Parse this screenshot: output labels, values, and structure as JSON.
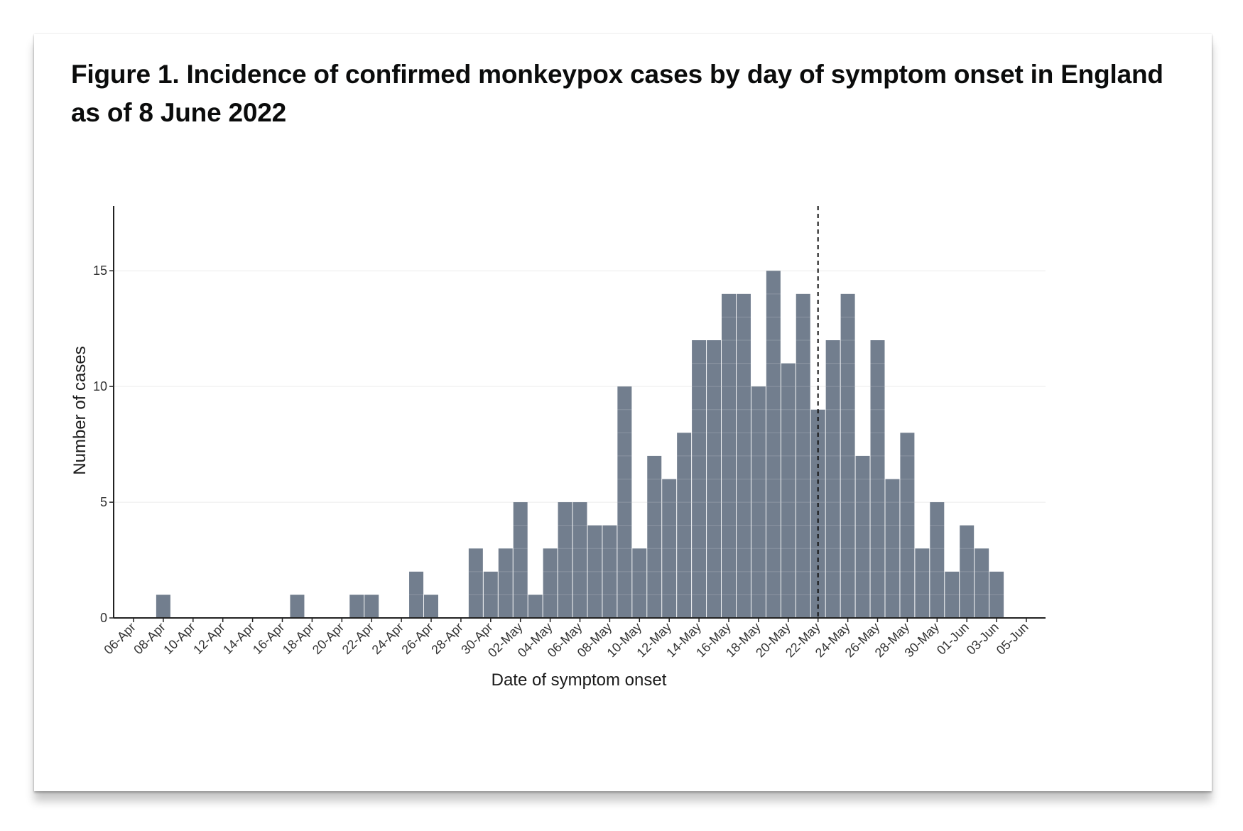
{
  "figure": {
    "title": "Figure 1. Incidence of confirmed monkeypox cases by day of symptom onset in England as of 8 June 2022"
  },
  "chart_data": {
    "type": "bar",
    "title": "Figure 1. Incidence of confirmed monkeypox cases by day of symptom onset in England as of 8 June 2022",
    "xlabel": "Date of symptom onset",
    "ylabel": "Number of cases",
    "x_start": "2022-04-06",
    "x_end": "2022-06-05",
    "categories": [
      "2022-04-06",
      "2022-04-07",
      "2022-04-08",
      "2022-04-09",
      "2022-04-10",
      "2022-04-11",
      "2022-04-12",
      "2022-04-13",
      "2022-04-14",
      "2022-04-15",
      "2022-04-16",
      "2022-04-17",
      "2022-04-18",
      "2022-04-19",
      "2022-04-20",
      "2022-04-21",
      "2022-04-22",
      "2022-04-23",
      "2022-04-24",
      "2022-04-25",
      "2022-04-26",
      "2022-04-27",
      "2022-04-28",
      "2022-04-29",
      "2022-04-30",
      "2022-05-01",
      "2022-05-02",
      "2022-05-03",
      "2022-05-04",
      "2022-05-05",
      "2022-05-06",
      "2022-05-07",
      "2022-05-08",
      "2022-05-09",
      "2022-05-10",
      "2022-05-11",
      "2022-05-12",
      "2022-05-13",
      "2022-05-14",
      "2022-05-15",
      "2022-05-16",
      "2022-05-17",
      "2022-05-18",
      "2022-05-19",
      "2022-05-20",
      "2022-05-21",
      "2022-05-22",
      "2022-05-23",
      "2022-05-24",
      "2022-05-25",
      "2022-05-26",
      "2022-05-27",
      "2022-05-28",
      "2022-05-29",
      "2022-05-30",
      "2022-05-31",
      "2022-06-01",
      "2022-06-02",
      "2022-06-03",
      "2022-06-04",
      "2022-06-05"
    ],
    "values": [
      0,
      0,
      1,
      0,
      0,
      0,
      0,
      0,
      0,
      0,
      0,
      1,
      0,
      0,
      0,
      1,
      1,
      0,
      0,
      2,
      1,
      0,
      0,
      3,
      2,
      3,
      5,
      1,
      3,
      5,
      5,
      4,
      4,
      10,
      3,
      7,
      6,
      8,
      12,
      12,
      14,
      14,
      10,
      15,
      11,
      14,
      9,
      12,
      14,
      7,
      12,
      6,
      8,
      3,
      5,
      2,
      4,
      3,
      2,
      0,
      0
    ],
    "x_tick_labels": [
      "06-Apr",
      "08-Apr",
      "10-Apr",
      "12-Apr",
      "14-Apr",
      "16-Apr",
      "18-Apr",
      "20-Apr",
      "22-Apr",
      "24-Apr",
      "26-Apr",
      "28-Apr",
      "30-Apr",
      "02-May",
      "04-May",
      "06-May",
      "08-May",
      "10-May",
      "12-May",
      "14-May",
      "16-May",
      "18-May",
      "20-May",
      "22-May",
      "24-May",
      "26-May",
      "28-May",
      "30-May",
      "01-Jun",
      "03-Jun",
      "05-Jun"
    ],
    "y_ticks": [
      0,
      5,
      10,
      15
    ],
    "ylim": [
      0,
      17.8
    ],
    "vertical_reference_line": {
      "x": "2022-05-22",
      "style": "dashed"
    },
    "grid": "horizontal, faint",
    "colors": {
      "bar": "#727e8e",
      "bar_edge": "#ffffff",
      "reference_line": "#111111",
      "axis": "#222222"
    }
  }
}
